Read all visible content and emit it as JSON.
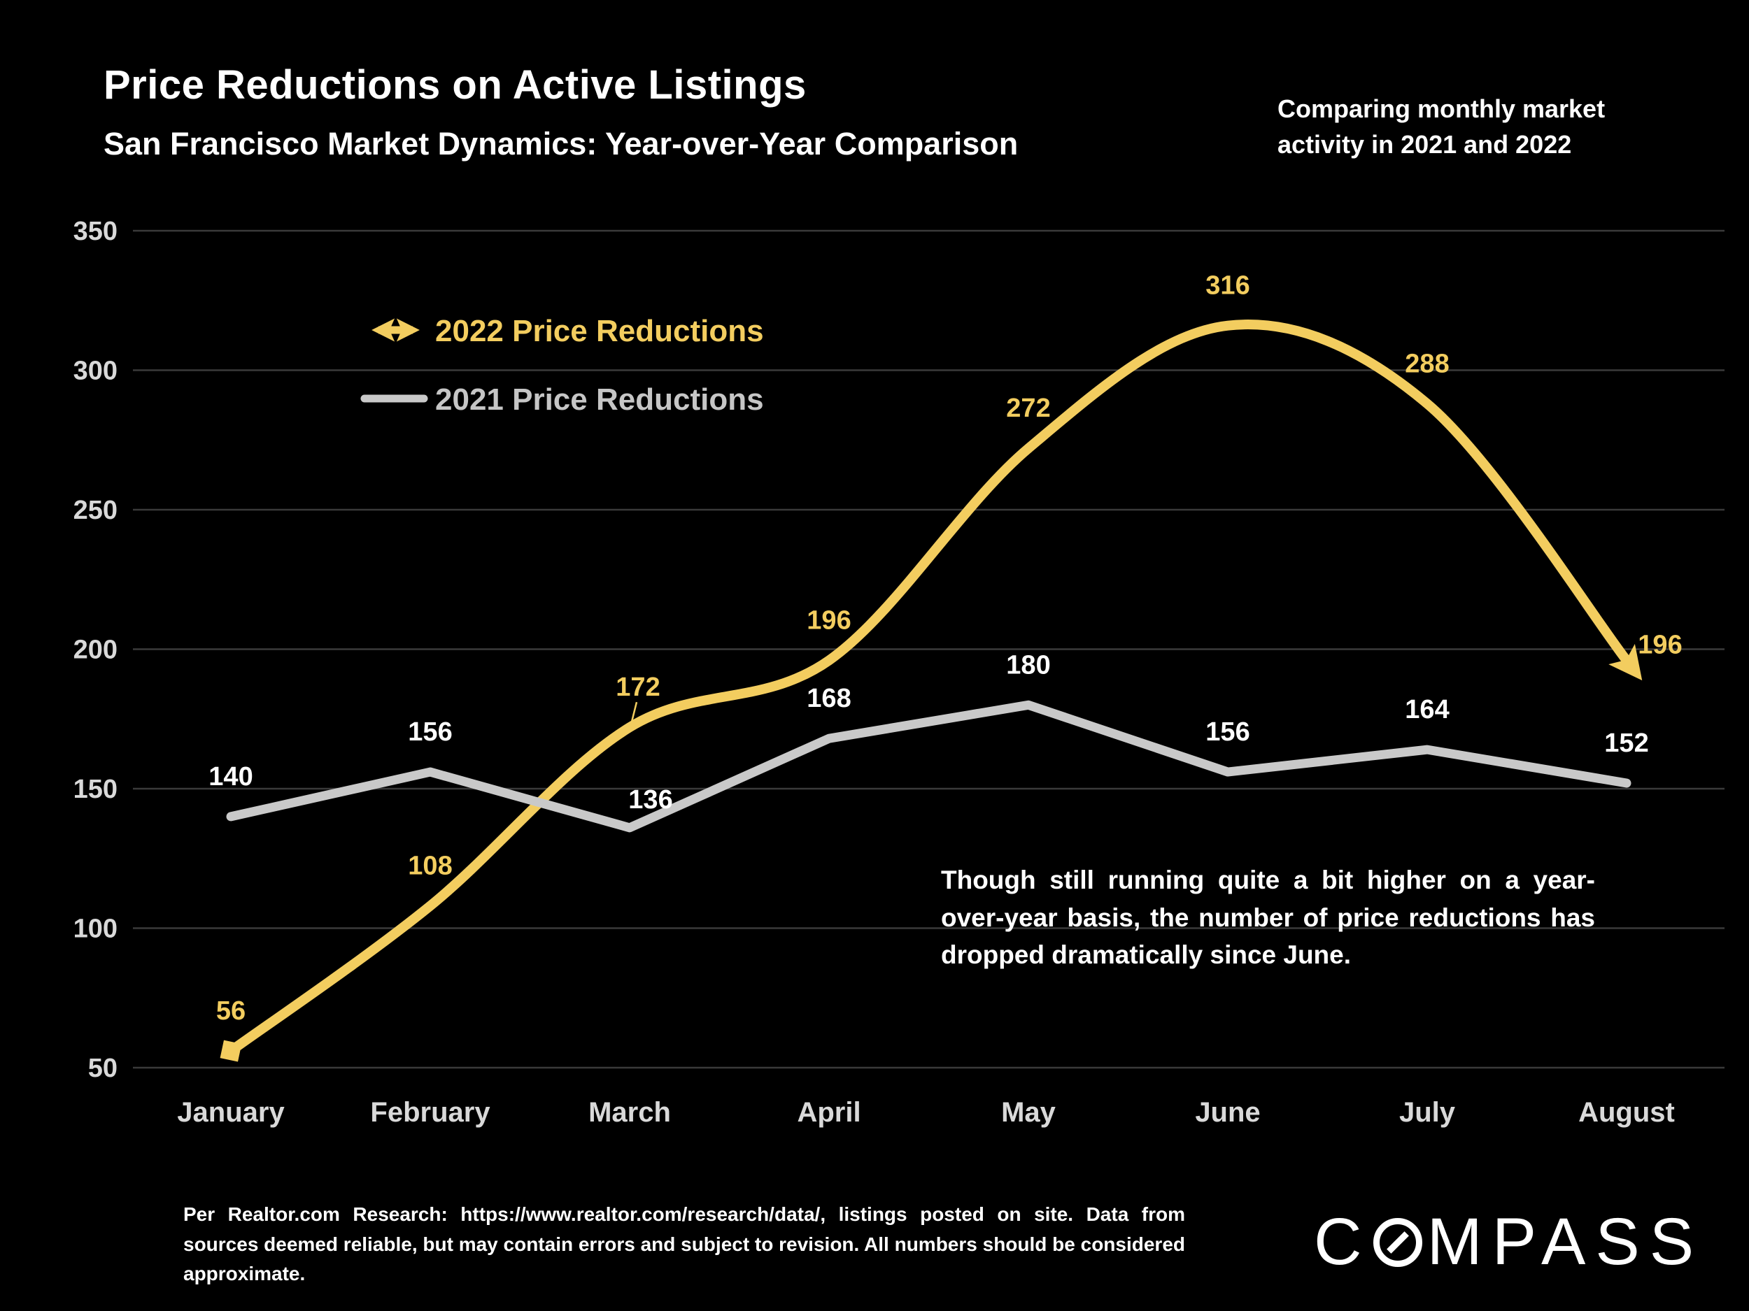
{
  "page": {
    "background": "#000000"
  },
  "header": {
    "title": "Price Reductions on Active Listings",
    "subtitle": "San Francisco Market Dynamics: Year-over-Year Comparison",
    "note": "Comparing monthly market activity in 2021 and 2022"
  },
  "chart_data": {
    "type": "line",
    "title": "Price Reductions on Active Listings",
    "categories": [
      "January",
      "February",
      "March",
      "April",
      "May",
      "June",
      "July",
      "August"
    ],
    "series": [
      {
        "name": "2022 Price Reductions",
        "values": [
          56,
          108,
          172,
          196,
          272,
          316,
          288,
          196
        ],
        "color": "#F3CD5F",
        "label_color": "#F3CD5F",
        "line_style": "smooth",
        "start_marker": "square",
        "end_marker": "arrow",
        "legend_icon": "double-arrow"
      },
      {
        "name": "2021 Price Reductions",
        "values": [
          140,
          156,
          136,
          168,
          180,
          156,
          164,
          152
        ],
        "color": "#C9C9C9",
        "label_color": "#FFFFFF",
        "line_style": "straight",
        "legend_icon": "line",
        "legend_text_color": "#C6C6C6"
      }
    ],
    "xlabel": "",
    "ylabel": "",
    "ylim": [
      50,
      350
    ],
    "yticks": [
      50,
      100,
      150,
      200,
      250,
      300,
      350
    ],
    "grid": "horizontal",
    "legend_position": "upper-left-inside",
    "colors": {
      "grid": "#3A3A3A",
      "axis_text": "#D9D9D9",
      "background": "#000000"
    }
  },
  "annotation": {
    "text": "Though still running quite a bit higher on a year-over-year basis, the number of price reductions has dropped dramatically since June."
  },
  "footer": {
    "source_text": "Per Realtor.com Research: https://www.realtor.com/research/data/, listings posted on site. Data from sources deemed reliable, but may contain errors and subject to revision. All numbers should be considered approximate."
  },
  "logo": {
    "text": "COMPASS"
  }
}
